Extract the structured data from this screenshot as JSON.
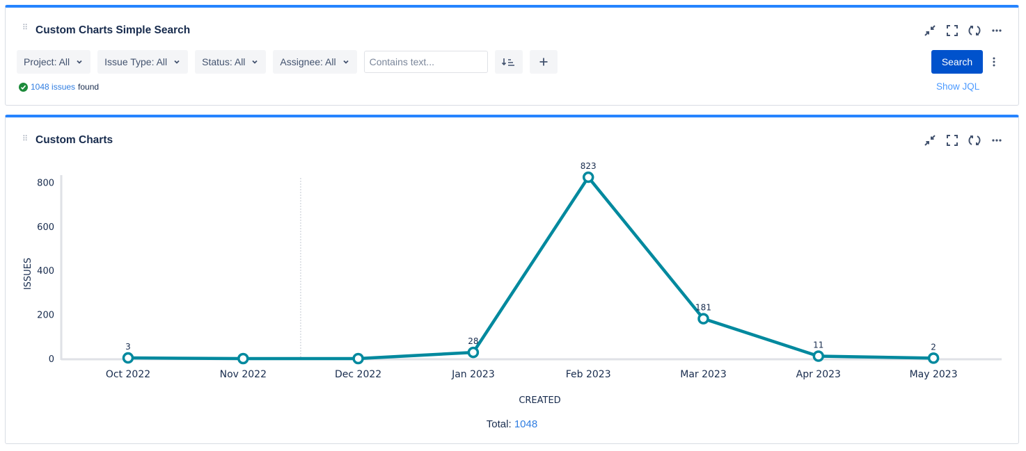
{
  "search_panel": {
    "title": "Custom Charts Simple Search",
    "filters": [
      {
        "label": "Project: All"
      },
      {
        "label": "Issue Type: All"
      },
      {
        "label": "Status: All"
      },
      {
        "label": "Assignee: All"
      }
    ],
    "text_placeholder": "Contains text...",
    "search_label": "Search",
    "show_jql_label": "Show JQL",
    "found_count_text": "1048 issues",
    "found_suffix": "found"
  },
  "chart_panel": {
    "title": "Custom Charts",
    "total_label": "Total:",
    "total_value": "1048"
  },
  "colors": {
    "accent": "#2684ff",
    "line": "#00899e",
    "button": "#0052cc",
    "link": "#2f7de1"
  },
  "chart_data": {
    "type": "line",
    "categories": [
      "Oct 2022",
      "Nov 2022",
      "Dec 2022",
      "Jan 2023",
      "Feb 2023",
      "Mar 2023",
      "Apr 2023",
      "May 2023"
    ],
    "series": [
      {
        "values": [
          3,
          0,
          0,
          28,
          823,
          181,
          11,
          2
        ]
      }
    ],
    "data_labels": [
      "3",
      "",
      "",
      "28",
      "823",
      "181",
      "11",
      "2"
    ],
    "xlabel": "CREATED",
    "ylabel": "ISSUES",
    "ylim": [
      0,
      820
    ],
    "yticks": [
      0,
      200,
      400,
      600,
      800
    ],
    "grid": false
  }
}
